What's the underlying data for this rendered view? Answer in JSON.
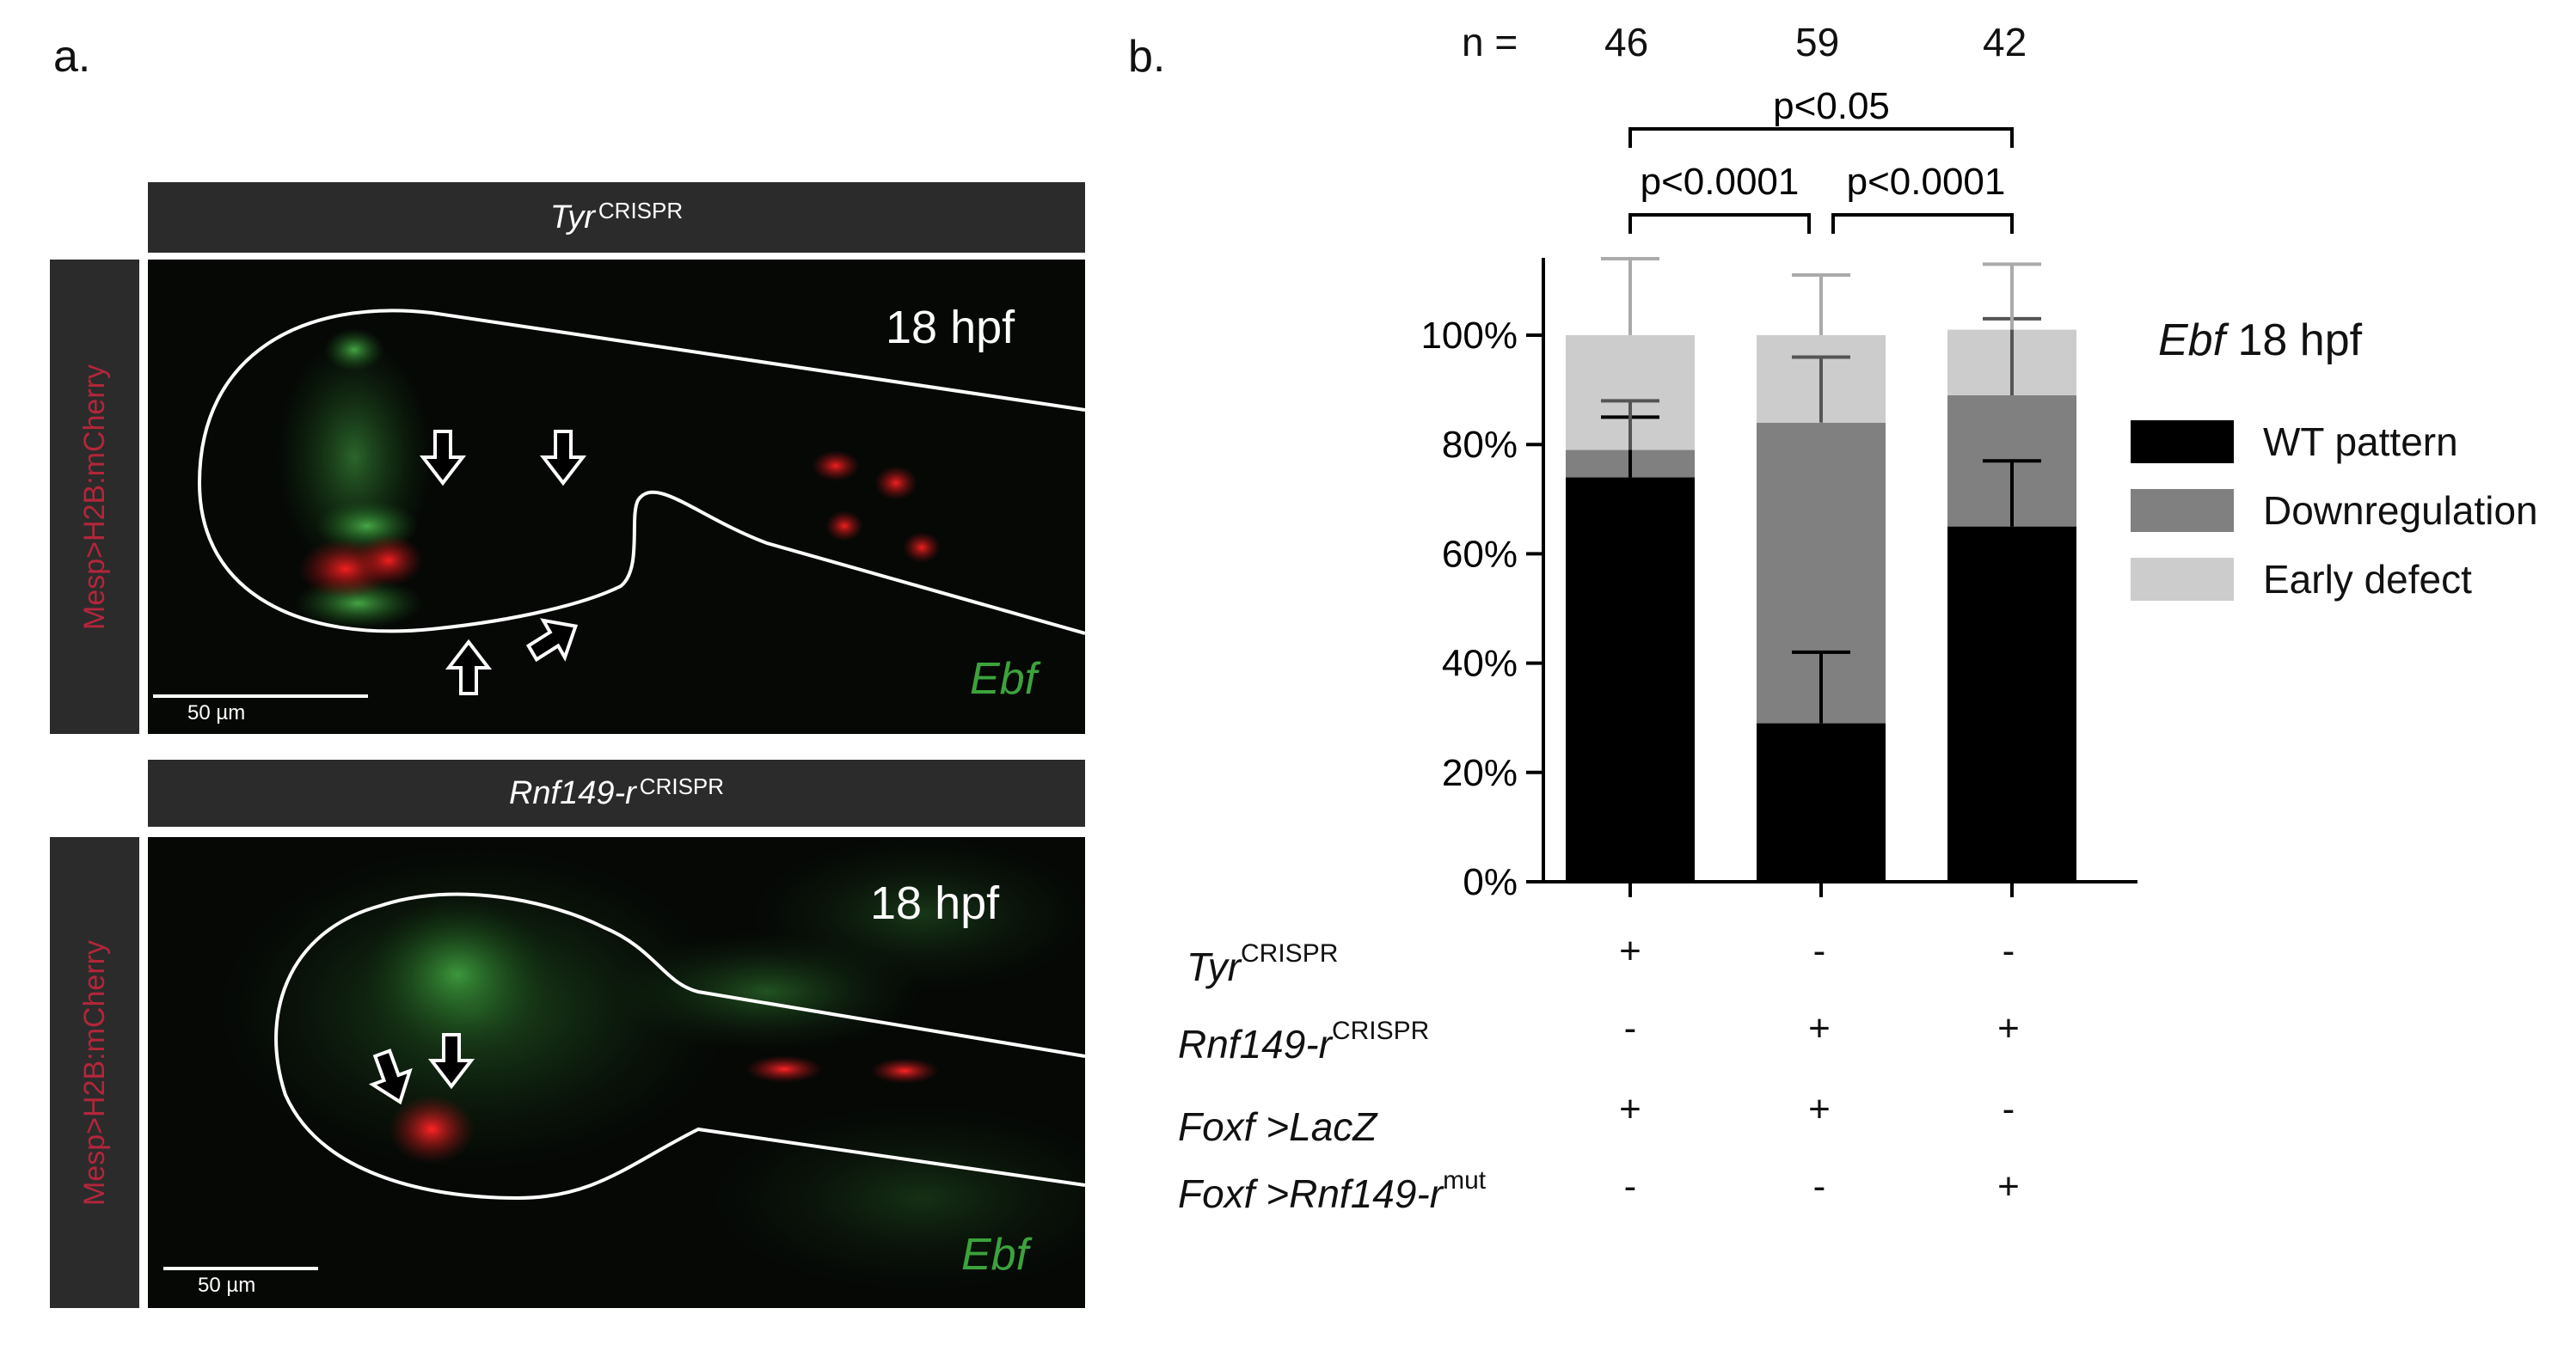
{
  "panel_a": {
    "label": "a.",
    "images": [
      {
        "title_main": "Tyr",
        "title_sup": "CRISPR",
        "side_label": "Mesp>H2B:mCherry",
        "time": "18 hpf",
        "stain": "Ebf",
        "scale": "50 µm"
      },
      {
        "title_main": "Rnf149-r",
        "title_sup": "CRISPR",
        "side_label": "Mesp>H2B:mCherry",
        "time": "18 hpf",
        "stain": "Ebf",
        "scale": "50 µm"
      }
    ]
  },
  "panel_b": {
    "label": "b.",
    "n_prefix": "n =",
    "n_values": [
      "46",
      "59",
      "42"
    ],
    "comparisons": [
      {
        "label": "p<0.05"
      },
      {
        "label": "p<0.0001"
      },
      {
        "label": "p<0.0001"
      }
    ],
    "conditions": [
      {
        "main": "Tyr",
        "sup": "CRISPR",
        "signs": [
          "+",
          "-",
          "-"
        ]
      },
      {
        "main": "Rnf149-r",
        "sup": "CRISPR",
        "signs": [
          "-",
          "+",
          "+"
        ]
      },
      {
        "main": "Foxf >LacZ",
        "sup": "",
        "signs": [
          "+",
          "+",
          "-"
        ]
      },
      {
        "main": "Foxf >Rnf149-r",
        "sup": "mut",
        "signs": [
          "-",
          "-",
          "+"
        ]
      }
    ]
  },
  "chart_data": {
    "type": "bar",
    "stacked": true,
    "categories": [
      "46",
      "59",
      "42"
    ],
    "ylim": [
      0,
      100
    ],
    "yticks": [
      "0%",
      "20%",
      "40%",
      "60%",
      "80%",
      "100%"
    ],
    "legend_title_italic": "Ebf",
    "legend_title_rest": " 18 hpf",
    "series": [
      {
        "name": "WT pattern",
        "values": [
          74,
          29,
          65
        ],
        "errors": [
          11,
          13,
          12
        ],
        "color": "#000000"
      },
      {
        "name": "Downregulation",
        "values": [
          5,
          55,
          24
        ],
        "errors": [
          9,
          12,
          14
        ],
        "color": "#808080"
      },
      {
        "name": "Early defect",
        "values": [
          21,
          16,
          12
        ],
        "errors": [
          14,
          11,
          12
        ],
        "color": "#cccccc"
      }
    ]
  }
}
